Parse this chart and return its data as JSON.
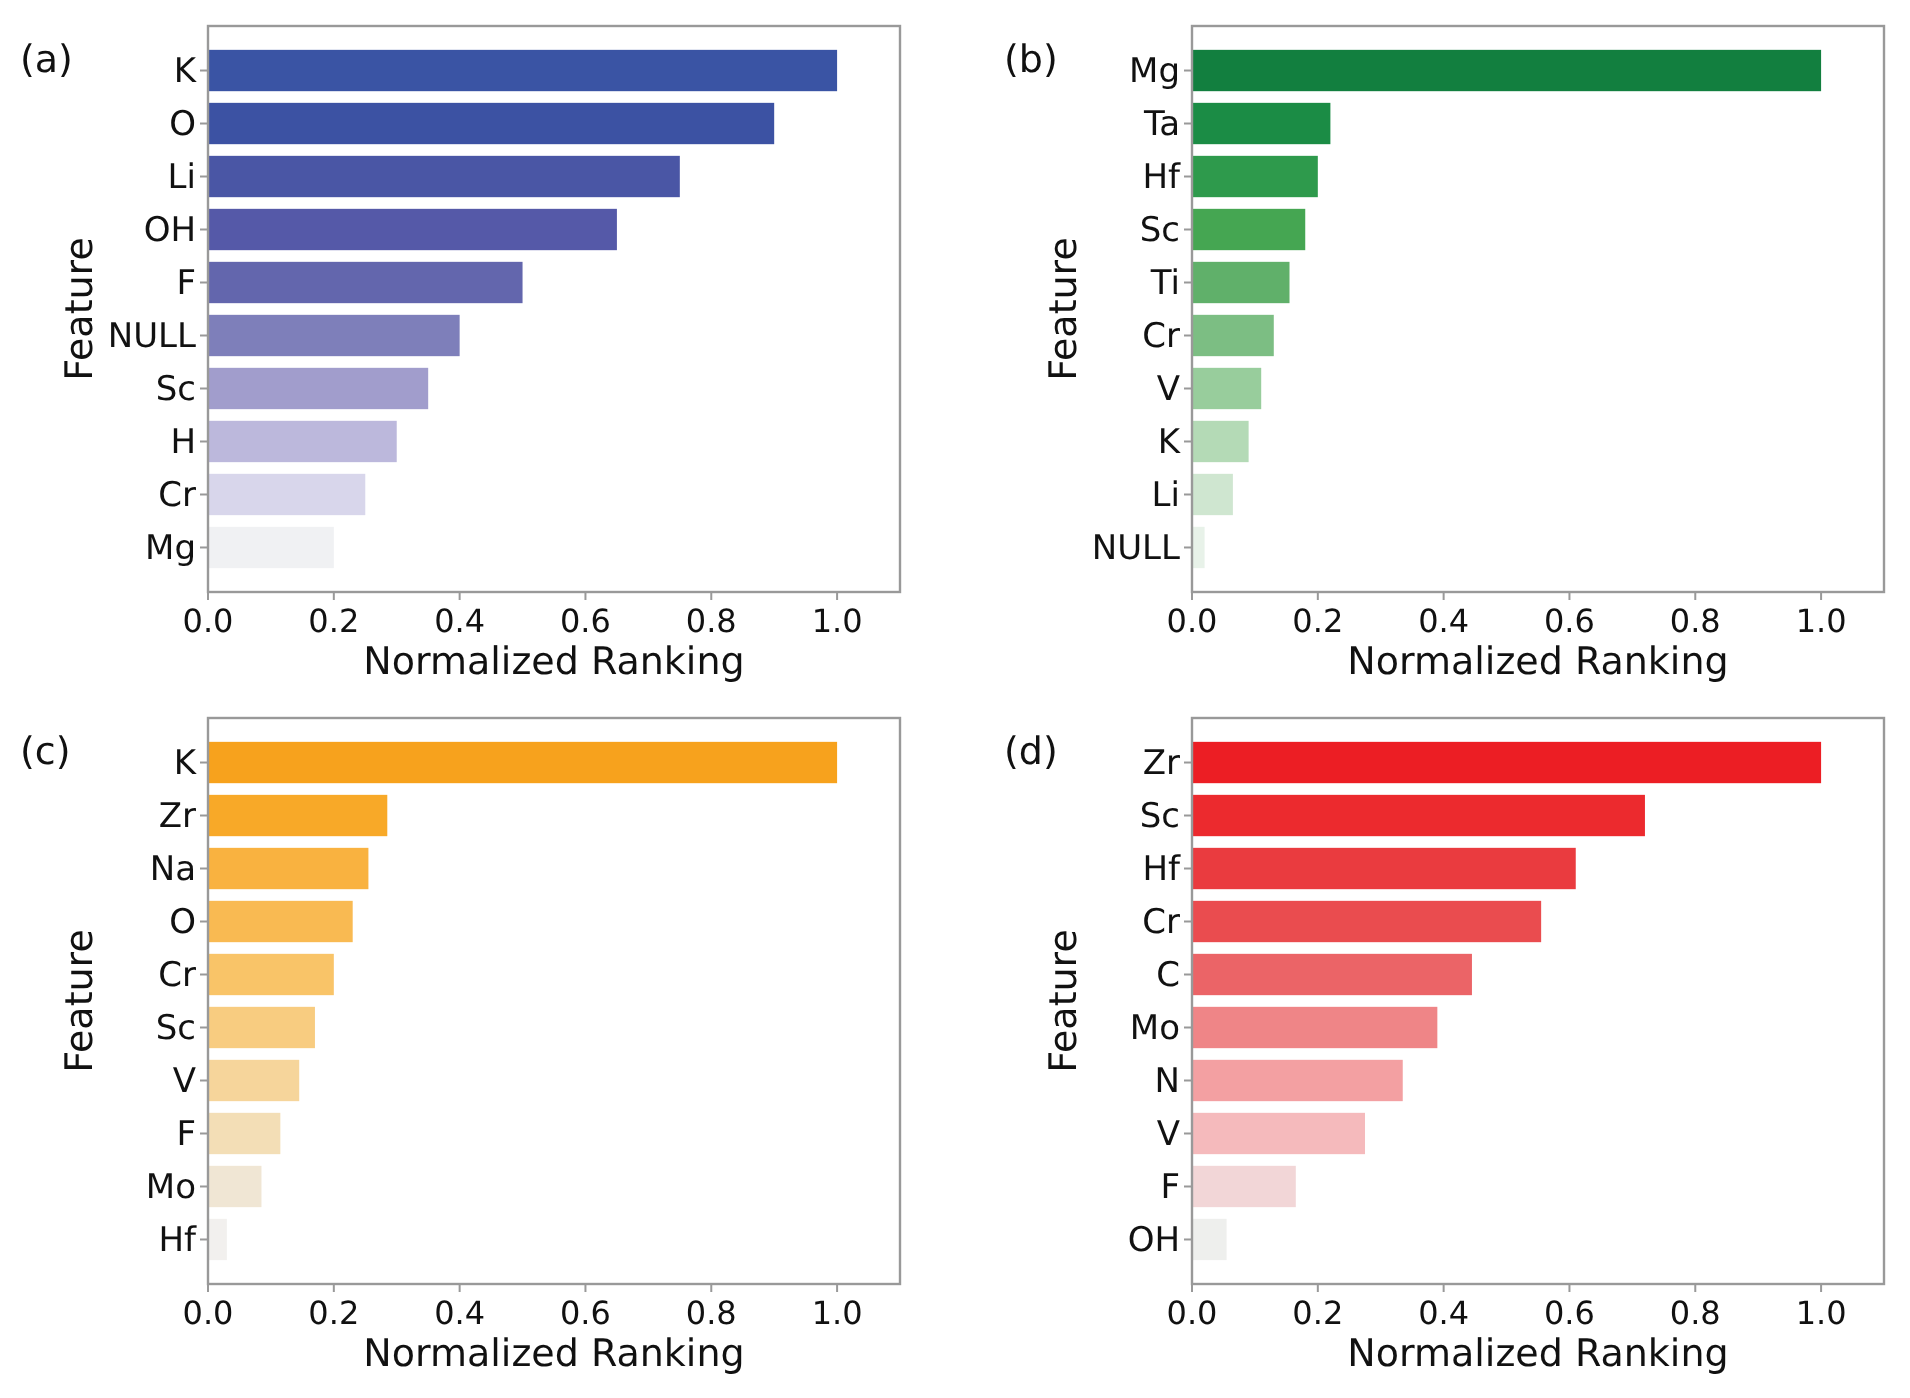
{
  "chart_data": [
    {
      "type": "bar",
      "orientation": "horizontal",
      "title": "(a)",
      "xlabel": "Normalized Ranking",
      "ylabel": "Feature",
      "categories": [
        "K",
        "O",
        "Li",
        "OH",
        "F",
        "NULL",
        "Sc",
        "H",
        "Cr",
        "Mg"
      ],
      "values": [
        1.0,
        0.9,
        0.75,
        0.65,
        0.5,
        0.4,
        0.35,
        0.3,
        0.25,
        0.2
      ],
      "colors": [
        "#3a54a4",
        "#3c52a3",
        "#4a56a5",
        "#5559a8",
        "#6366ad",
        "#7e7fba",
        "#a19dcc",
        "#bcb8dc",
        "#d8d6eb",
        "#f0f1f3"
      ],
      "xlim": [
        0,
        1.1
      ],
      "xticks": [
        {
          "value": 0,
          "label": "0.0"
        },
        {
          "value": 0.2,
          "label": "0.2"
        },
        {
          "value": 0.4,
          "label": "0.4"
        },
        {
          "value": 0.6,
          "label": "0.6"
        },
        {
          "value": 0.8,
          "label": "0.8"
        },
        {
          "value": 1,
          "label": "1.0"
        }
      ]
    },
    {
      "type": "bar",
      "orientation": "horizontal",
      "title": "(b)",
      "xlabel": "Normalized Ranking",
      "ylabel": "Feature",
      "categories": [
        "Mg",
        "Ta",
        "Hf",
        "Sc",
        "Ti",
        "Cr",
        "V",
        "K",
        "Li",
        "NULL"
      ],
      "values": [
        1.0,
        0.22,
        0.2,
        0.18,
        0.155,
        0.13,
        0.11,
        0.09,
        0.065,
        0.02
      ],
      "colors": [
        "#127f3f",
        "#1b8c45",
        "#2e9a4c",
        "#45a652",
        "#60b06a",
        "#7cbe83",
        "#98cd9c",
        "#b4dab6",
        "#cfe6d0",
        "#e8f2e9"
      ],
      "xlim": [
        0,
        1.1
      ],
      "xticks": [
        {
          "value": 0,
          "label": "0.0"
        },
        {
          "value": 0.2,
          "label": "0.2"
        },
        {
          "value": 0.4,
          "label": "0.4"
        },
        {
          "value": 0.6,
          "label": "0.6"
        },
        {
          "value": 0.8,
          "label": "0.8"
        },
        {
          "value": 1,
          "label": "1.0"
        }
      ]
    },
    {
      "type": "bar",
      "orientation": "horizontal",
      "title": "(c)",
      "xlabel": "Normalized Ranking",
      "ylabel": "Feature",
      "categories": [
        "K",
        "Zr",
        "Na",
        "O",
        "Cr",
        "Sc",
        "V",
        "F",
        "Mo",
        "Hf"
      ],
      "values": [
        1.0,
        0.285,
        0.255,
        0.23,
        0.2,
        0.17,
        0.145,
        0.115,
        0.085,
        0.03
      ],
      "colors": [
        "#f7a21d",
        "#f8a928",
        "#f9b240",
        "#f9ba52",
        "#f9c468",
        "#f8cc80",
        "#f6d59b",
        "#f3deb6",
        "#f0e6d4",
        "#f2f0ee"
      ],
      "xlim": [
        0,
        1.1
      ],
      "xticks": [
        {
          "value": 0,
          "label": "0.0"
        },
        {
          "value": 0.2,
          "label": "0.2"
        },
        {
          "value": 0.4,
          "label": "0.4"
        },
        {
          "value": 0.6,
          "label": "0.6"
        },
        {
          "value": 0.8,
          "label": "0.8"
        },
        {
          "value": 1,
          "label": "1.0"
        }
      ]
    },
    {
      "type": "bar",
      "orientation": "horizontal",
      "title": "(d)",
      "xlabel": "Normalized Ranking",
      "ylabel": "Feature",
      "categories": [
        "Zr",
        "Sc",
        "Hf",
        "Cr",
        "C",
        "Mo",
        "N",
        "V",
        "F",
        "OH"
      ],
      "values": [
        1.0,
        0.72,
        0.61,
        0.555,
        0.445,
        0.39,
        0.335,
        0.275,
        0.165,
        0.055
      ],
      "colors": [
        "#ec1e24",
        "#ec2a2e",
        "#ea3b3f",
        "#ea4c4f",
        "#eb6467",
        "#ef8587",
        "#f3a0a2",
        "#f5babc",
        "#f2d6d7",
        "#eeefed"
      ],
      "xlim": [
        0,
        1.1
      ],
      "xticks": [
        {
          "value": 0,
          "label": "0.0"
        },
        {
          "value": 0.2,
          "label": "0.2"
        },
        {
          "value": 0.4,
          "label": "0.4"
        },
        {
          "value": 0.6,
          "label": "0.6"
        },
        {
          "value": 0.8,
          "label": "0.8"
        },
        {
          "value": 1,
          "label": "1.0"
        }
      ]
    }
  ]
}
